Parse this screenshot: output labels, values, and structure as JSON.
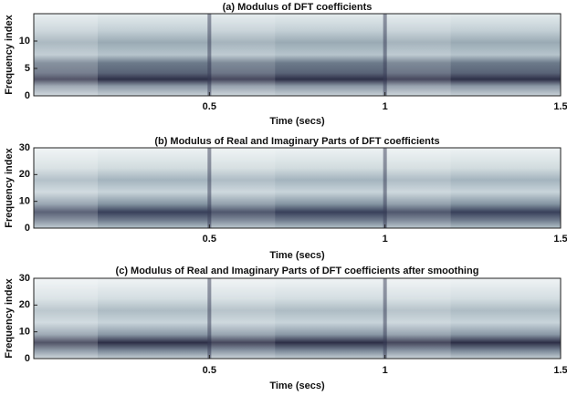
{
  "chart_data": [
    {
      "type": "heatmap",
      "title": "(a) Modulus of DFT coefficients",
      "x_label": "Time (secs)",
      "y_label": "Frequency index",
      "xlim": [
        0,
        1.5
      ],
      "xticks": [
        0.5,
        1,
        1.5
      ],
      "ylim": [
        0,
        15
      ],
      "yticks": [
        0,
        5,
        10
      ]
    },
    {
      "type": "heatmap",
      "title": "(b) Modulus of Real and Imaginary Parts of DFT coefficients",
      "x_label": "Time (secs)",
      "y_label": "Frequency index",
      "xlim": [
        0,
        1.5
      ],
      "xticks": [
        0.5,
        1,
        1.5
      ],
      "ylim": [
        0,
        30
      ],
      "yticks": [
        0,
        10,
        20,
        30
      ]
    },
    {
      "type": "heatmap",
      "title": "(c) Modulus of Real and Imaginary Parts of DFT coefficients after smoothing",
      "x_label": "Time (secs)",
      "y_label": "Frequency index",
      "xlim": [
        0,
        1.5
      ],
      "xticks": [
        0.5,
        1,
        1.5
      ],
      "ylim": [
        0,
        30
      ],
      "yticks": [
        0,
        10,
        20,
        30
      ]
    }
  ]
}
